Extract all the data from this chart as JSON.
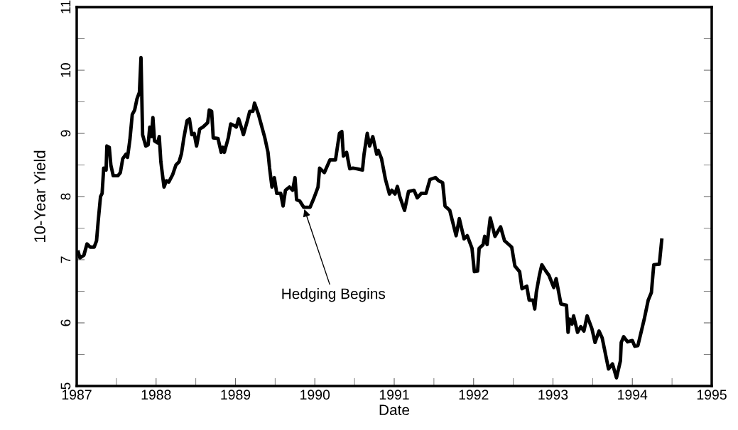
{
  "chart_data": {
    "type": "line",
    "xlabel": "Date",
    "ylabel": "10-Year Yield",
    "xlim": [
      1987,
      1995
    ],
    "xticks": [
      1987,
      1988,
      1989,
      1990,
      1991,
      1992,
      1993,
      1994,
      1995
    ],
    "ylim": [
      5,
      11
    ],
    "yticks": [
      5,
      6,
      7,
      8,
      9,
      10,
      11
    ],
    "grid": false,
    "legend": false,
    "marker": "none",
    "line_style": "solid",
    "annotations": [
      {
        "text": "Hedging Begins",
        "x": 1989.86,
        "y": 7.83
      }
    ],
    "series": [
      {
        "color": "#000000",
        "x": [
          1987.02,
          1987.04,
          1987.09,
          1987.13,
          1987.17,
          1987.22,
          1987.25,
          1987.27,
          1987.3,
          1987.32,
          1987.34,
          1987.37,
          1987.38,
          1987.41,
          1987.43,
          1987.46,
          1987.52,
          1987.55,
          1987.58,
          1987.62,
          1987.64,
          1987.67,
          1987.7,
          1987.73,
          1987.76,
          1987.79,
          1987.81,
          1987.83,
          1987.87,
          1987.9,
          1987.92,
          1987.94,
          1987.96,
          1987.98,
          1988.02,
          1988.04,
          1988.06,
          1988.1,
          1988.13,
          1988.16,
          1988.21,
          1988.25,
          1988.29,
          1988.32,
          1988.35,
          1988.39,
          1988.42,
          1988.45,
          1988.48,
          1988.51,
          1988.55,
          1988.59,
          1988.65,
          1988.67,
          1988.7,
          1988.72,
          1988.78,
          1988.82,
          1988.84,
          1988.86,
          1988.91,
          1988.94,
          1988.99,
          1989.01,
          1989.04,
          1989.08,
          1989.1,
          1989.15,
          1989.18,
          1989.22,
          1989.24,
          1989.29,
          1989.34,
          1989.37,
          1989.41,
          1989.43,
          1989.46,
          1989.49,
          1989.52,
          1989.57,
          1989.6,
          1989.63,
          1989.68,
          1989.72,
          1989.75,
          1989.77,
          1989.81,
          1989.86,
          1989.94,
          1989.99,
          1990.04,
          1990.06,
          1990.12,
          1990.19,
          1990.26,
          1990.31,
          1990.34,
          1990.36,
          1990.4,
          1990.44,
          1990.48,
          1990.53,
          1990.6,
          1990.62,
          1990.66,
          1990.69,
          1990.73,
          1990.78,
          1990.8,
          1990.84,
          1990.89,
          1990.94,
          1990.97,
          1991.01,
          1991.04,
          1991.07,
          1991.13,
          1991.18,
          1991.25,
          1991.29,
          1991.34,
          1991.4,
          1991.45,
          1991.52,
          1991.56,
          1991.61,
          1991.64,
          1991.7,
          1991.78,
          1991.82,
          1991.88,
          1991.92,
          1991.98,
          1992.01,
          1992.05,
          1992.07,
          1992.12,
          1992.14,
          1992.17,
          1992.21,
          1992.27,
          1992.34,
          1992.39,
          1992.48,
          1992.52,
          1992.58,
          1992.61,
          1992.67,
          1992.7,
          1992.75,
          1992.77,
          1992.79,
          1992.83,
          1992.86,
          1992.91,
          1992.95,
          1993.01,
          1993.04,
          1993.1,
          1993.17,
          1993.19,
          1993.21,
          1993.24,
          1993.26,
          1993.31,
          1993.35,
          1993.39,
          1993.43,
          1993.49,
          1993.53,
          1993.58,
          1993.62,
          1993.7,
          1993.75,
          1993.8,
          1993.85,
          1993.86,
          1993.89,
          1993.94,
          1994.0,
          1994.03,
          1994.07,
          1994.11,
          1994.15,
          1994.2,
          1994.24,
          1994.27,
          1994.34,
          1994.37
        ],
        "values": [
          7.12,
          7.03,
          7.07,
          7.25,
          7.2,
          7.2,
          7.3,
          7.6,
          8.0,
          8.05,
          8.45,
          8.42,
          8.8,
          8.78,
          8.5,
          8.33,
          8.33,
          8.38,
          8.6,
          8.67,
          8.62,
          8.9,
          9.3,
          9.37,
          9.55,
          9.65,
          10.2,
          8.98,
          8.8,
          8.82,
          9.1,
          8.95,
          9.25,
          8.88,
          8.85,
          8.95,
          8.55,
          8.15,
          8.25,
          8.23,
          8.35,
          8.5,
          8.55,
          8.68,
          8.93,
          9.2,
          9.23,
          8.98,
          9.0,
          8.8,
          9.07,
          9.1,
          9.17,
          9.37,
          9.35,
          8.93,
          8.92,
          8.7,
          8.78,
          8.7,
          8.93,
          9.15,
          9.12,
          9.1,
          9.23,
          9.07,
          8.98,
          9.2,
          9.35,
          9.35,
          9.48,
          9.3,
          9.07,
          8.93,
          8.7,
          8.45,
          8.15,
          8.3,
          8.05,
          8.05,
          7.85,
          8.1,
          8.15,
          8.1,
          8.3,
          7.95,
          7.93,
          7.83,
          7.83,
          7.98,
          8.15,
          8.45,
          8.38,
          8.58,
          8.58,
          9.0,
          9.03,
          8.64,
          8.7,
          8.44,
          8.45,
          8.44,
          8.42,
          8.67,
          9.0,
          8.8,
          8.95,
          8.67,
          8.73,
          8.6,
          8.27,
          8.04,
          8.1,
          8.04,
          8.16,
          8.0,
          7.78,
          8.08,
          8.1,
          7.98,
          8.05,
          8.05,
          8.27,
          8.3,
          8.25,
          8.22,
          7.85,
          7.78,
          7.38,
          7.65,
          7.33,
          7.38,
          7.18,
          6.81,
          6.82,
          7.18,
          7.24,
          7.37,
          7.24,
          7.66,
          7.37,
          7.52,
          7.3,
          7.2,
          6.9,
          6.81,
          6.54,
          6.58,
          6.36,
          6.36,
          6.22,
          6.48,
          6.76,
          6.92,
          6.82,
          6.75,
          6.56,
          6.7,
          6.3,
          6.28,
          5.85,
          6.06,
          5.98,
          6.11,
          5.85,
          5.94,
          5.87,
          6.11,
          5.91,
          5.69,
          5.87,
          5.76,
          5.27,
          5.35,
          5.13,
          5.4,
          5.69,
          5.78,
          5.7,
          5.72,
          5.63,
          5.64,
          5.85,
          6.06,
          6.36,
          6.48,
          6.92,
          6.93,
          7.31
        ]
      }
    ]
  }
}
